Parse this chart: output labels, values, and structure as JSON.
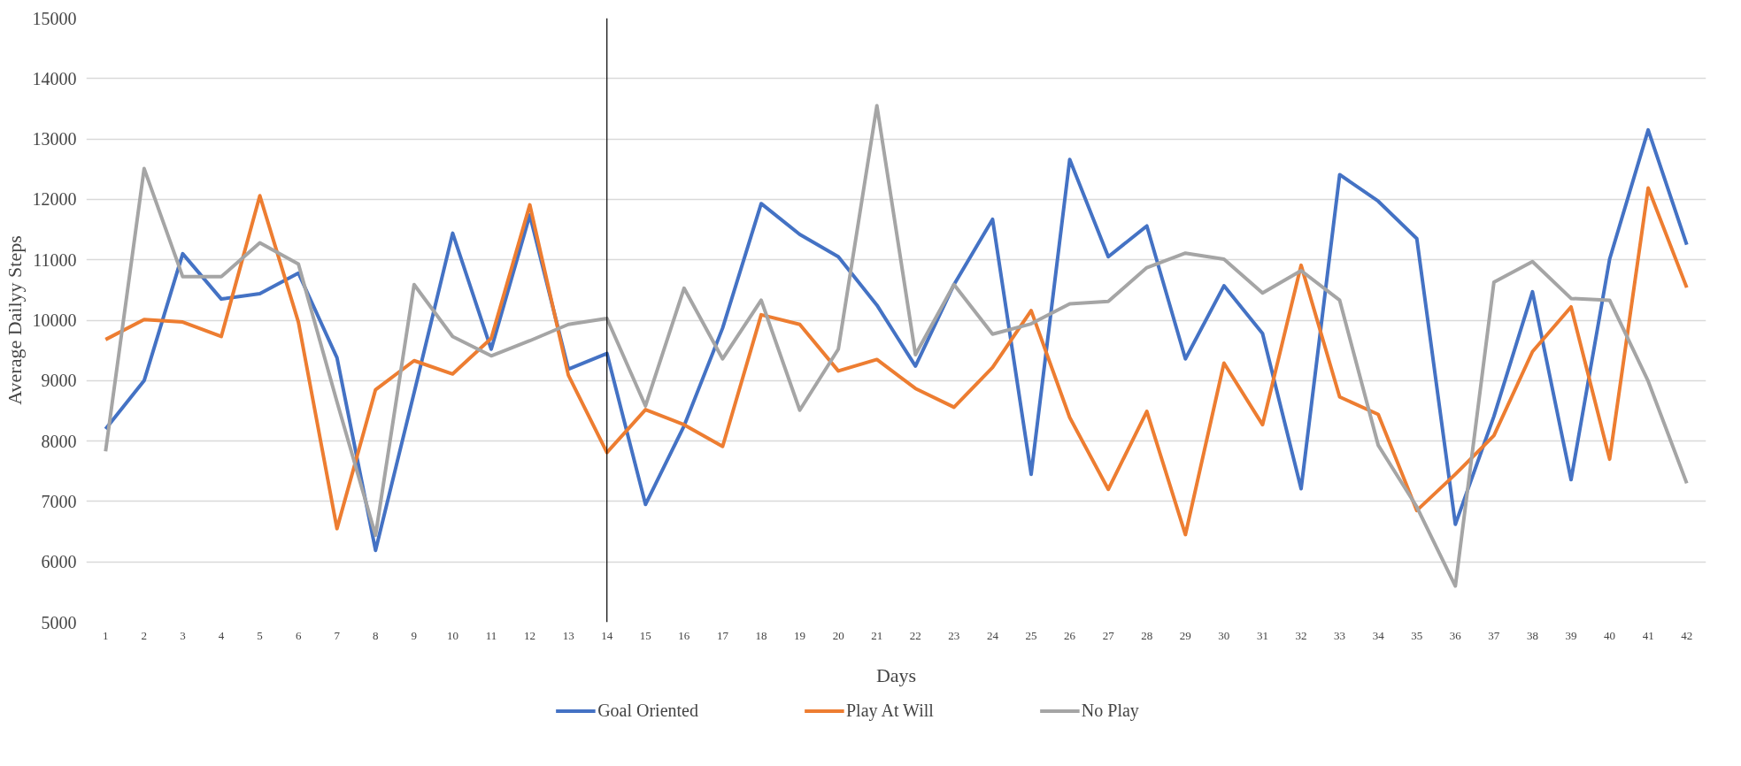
{
  "chart_data": {
    "type": "line",
    "xlabel": "Days",
    "ylabel": "Average Dailyy Steps",
    "x": [
      1,
      2,
      3,
      4,
      5,
      6,
      7,
      8,
      9,
      10,
      11,
      12,
      13,
      14,
      15,
      16,
      17,
      18,
      19,
      20,
      21,
      22,
      23,
      24,
      25,
      26,
      27,
      28,
      29,
      30,
      31,
      32,
      33,
      34,
      35,
      36,
      37,
      38,
      39,
      40,
      41,
      42
    ],
    "xlim": [
      0.5,
      42.5
    ],
    "xticks": [
      1,
      2,
      3,
      4,
      5,
      6,
      7,
      8,
      9,
      10,
      11,
      12,
      13,
      14,
      15,
      16,
      17,
      18,
      19,
      20,
      21,
      22,
      23,
      24,
      25,
      26,
      27,
      28,
      29,
      30,
      31,
      32,
      33,
      34,
      35,
      36,
      37,
      38,
      39,
      40,
      41,
      42
    ],
    "ylim": [
      5000,
      15000
    ],
    "yticks": [
      5000,
      6000,
      7000,
      8000,
      9000,
      10000,
      11000,
      12000,
      13000,
      14000,
      15000
    ],
    "series": [
      {
        "name": "Goal Oriented",
        "color": "#4472c4",
        "values": [
          8200,
          9000,
          11100,
          10350,
          10440,
          10780,
          9380,
          6190,
          8800,
          11440,
          9520,
          11740,
          9190,
          9450,
          6950,
          8250,
          9870,
          11930,
          11420,
          11050,
          10250,
          9240,
          10590,
          11670,
          7450,
          12660,
          11050,
          11560,
          9360,
          10570,
          9780,
          7210,
          12410,
          11970,
          11350,
          6620,
          8410,
          10470,
          7360,
          11010,
          13150,
          11250
        ]
      },
      {
        "name": "Play At Will",
        "color": "#ed7d31",
        "values": [
          9680,
          10010,
          9970,
          9730,
          12060,
          9970,
          6550,
          8850,
          9330,
          9110,
          9700,
          11910,
          9090,
          7810,
          8520,
          8270,
          7910,
          10090,
          9930,
          9160,
          9350,
          8870,
          8560,
          9220,
          10160,
          8390,
          7200,
          8490,
          6450,
          9290,
          8270,
          10910,
          8730,
          8440,
          6850,
          7450,
          8090,
          9480,
          10220,
          7700,
          12190,
          10540
        ]
      },
      {
        "name": "No Play",
        "color": "#a5a5a5",
        "values": [
          7830,
          12510,
          10720,
          10720,
          11280,
          10930,
          8650,
          6440,
          10590,
          9730,
          9410,
          9660,
          9930,
          10030,
          8580,
          10530,
          9360,
          10330,
          8510,
          9520,
          13550,
          9430,
          10590,
          9770,
          9940,
          10270,
          10310,
          10870,
          11110,
          11010,
          10450,
          10820,
          10330,
          7930,
          6910,
          5600,
          10630,
          10970,
          10360,
          10330,
          8990,
          7300
        ]
      }
    ],
    "ref_lines": [
      {
        "axis": "x",
        "value": 14,
        "color": "#000000"
      }
    ],
    "grid": "y",
    "legend": "bottom",
    "line_style": "solid",
    "marker": "none"
  }
}
